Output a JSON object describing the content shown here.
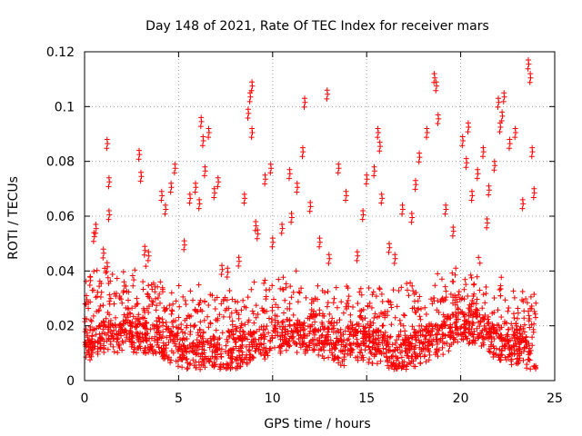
{
  "chart_data": {
    "type": "scatter",
    "title": "Day 148 of 2021, Rate Of TEC Index for receiver mars",
    "xlabel": "GPS time / hours",
    "ylabel": "ROTI / TECUs",
    "xlim": [
      0,
      25
    ],
    "ylim": [
      0,
      0.12
    ],
    "xticks": [
      0,
      5,
      10,
      15,
      20,
      25
    ],
    "xtick_labels": [
      "0",
      "5",
      "10",
      "15",
      "20",
      "25"
    ],
    "yticks": [
      0,
      0.02,
      0.04,
      0.06,
      0.08,
      0.1,
      0.12
    ],
    "ytick_labels": [
      "0",
      "0.02",
      "0.04",
      "0.06",
      "0.08",
      "0.1",
      "0.12"
    ],
    "grid": true,
    "marker": "+",
    "series": [
      {
        "name": "ROTI",
        "color": "#ff0000",
        "note": "dense band of points between ~0.005 and ~0.03 TECU/s across 0-24 h; listed below are representative outlier points",
        "x": [
          0.1,
          0.3,
          0.5,
          0.6,
          1.0,
          1.2,
          1.3,
          1.3,
          1.2,
          2.1,
          2.9,
          3.0,
          3.2,
          3.4,
          4.1,
          4.3,
          4.6,
          4.8,
          5.3,
          5.6,
          5.9,
          6.1,
          6.2,
          6.3,
          6.4,
          6.6,
          6.9,
          7.1,
          7.3,
          7.6,
          8.2,
          8.5,
          8.7,
          8.8,
          8.9,
          8.9,
          9.1,
          9.2,
          9.6,
          9.9,
          10.0,
          10.5,
          10.9,
          11.0,
          11.3,
          11.6,
          11.7,
          12.0,
          12.5,
          12.9,
          13.0,
          13.5,
          13.9,
          14.5,
          14.8,
          15.0,
          15.4,
          15.6,
          15.7,
          15.8,
          16.2,
          16.5,
          16.9,
          17.4,
          17.6,
          17.8,
          18.2,
          18.6,
          18.7,
          18.8,
          19.2,
          19.6,
          20.1,
          20.3,
          20.4,
          20.6,
          20.9,
          21.2,
          21.4,
          21.5,
          21.8,
          22.0,
          22.1,
          22.2,
          22.3,
          22.6,
          22.9,
          23.3,
          23.6,
          23.7,
          23.8,
          23.9
        ],
        "y": [
          0.031,
          0.038,
          0.054,
          0.057,
          0.048,
          0.088,
          0.062,
          0.074,
          0.043,
          0.036,
          0.084,
          0.076,
          0.049,
          0.047,
          0.069,
          0.064,
          0.072,
          0.079,
          0.051,
          0.068,
          0.072,
          0.066,
          0.096,
          0.089,
          0.078,
          0.092,
          0.07,
          0.074,
          0.042,
          0.041,
          0.045,
          0.068,
          0.099,
          0.105,
          0.109,
          0.092,
          0.058,
          0.055,
          0.075,
          0.079,
          0.052,
          0.057,
          0.077,
          0.061,
          0.072,
          0.085,
          0.103,
          0.065,
          0.052,
          0.106,
          0.046,
          0.079,
          0.069,
          0.047,
          0.062,
          0.075,
          0.078,
          0.092,
          0.087,
          0.068,
          0.05,
          0.046,
          0.064,
          0.061,
          0.073,
          0.083,
          0.092,
          0.112,
          0.109,
          0.097,
          0.064,
          0.056,
          0.089,
          0.081,
          0.094,
          0.069,
          0.077,
          0.085,
          0.059,
          0.071,
          0.08,
          0.103,
          0.094,
          0.098,
          0.105,
          0.088,
          0.092,
          0.066,
          0.117,
          0.112,
          0.085,
          0.07
        ]
      }
    ]
  }
}
